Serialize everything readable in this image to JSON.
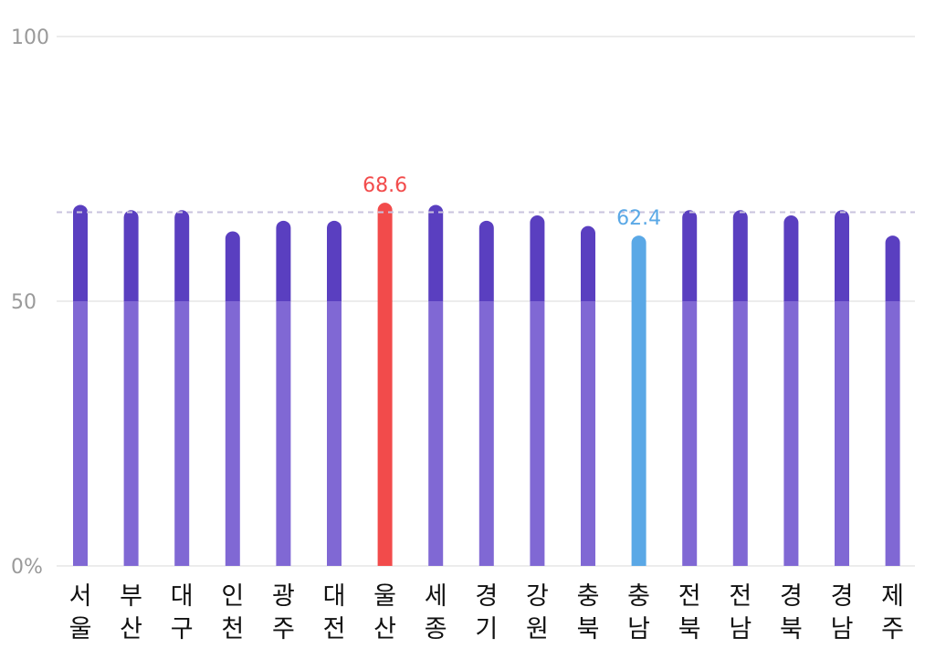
{
  "chart_data": {
    "type": "bar",
    "categories": [
      "서울",
      "부산",
      "대구",
      "인천",
      "광주",
      "대전",
      "울산",
      "세종",
      "경기",
      "강원",
      "충북",
      "충남",
      "전북",
      "전남",
      "경북",
      "경남",
      "제주"
    ],
    "values": [
      68.2,
      67.2,
      67.2,
      63.2,
      65.2,
      65.2,
      68.6,
      68.2,
      65.2,
      66.2,
      64.2,
      62.4,
      67.2,
      67.2,
      66.2,
      67.2,
      62.4
    ],
    "ylim": [
      0,
      100
    ],
    "yticks": [
      {
        "value": 0,
        "label": "0%"
      },
      {
        "value": 50,
        "label": "50"
      },
      {
        "value": 100,
        "label": "100"
      }
    ],
    "reference_line": {
      "value": 66.8,
      "style": "dashed"
    },
    "lower_segment_to": 50,
    "highlights": [
      {
        "category": "울산",
        "label": "68.6",
        "color": "#f24b4b"
      },
      {
        "category": "충남",
        "label": "62.4",
        "color": "#5aa8e6"
      }
    ],
    "colors": {
      "upper": "#5a3fc0",
      "lower": "#8068d4",
      "grid": "#ececec",
      "reference": "#c9c3de"
    },
    "grid": true,
    "legend": "none"
  }
}
